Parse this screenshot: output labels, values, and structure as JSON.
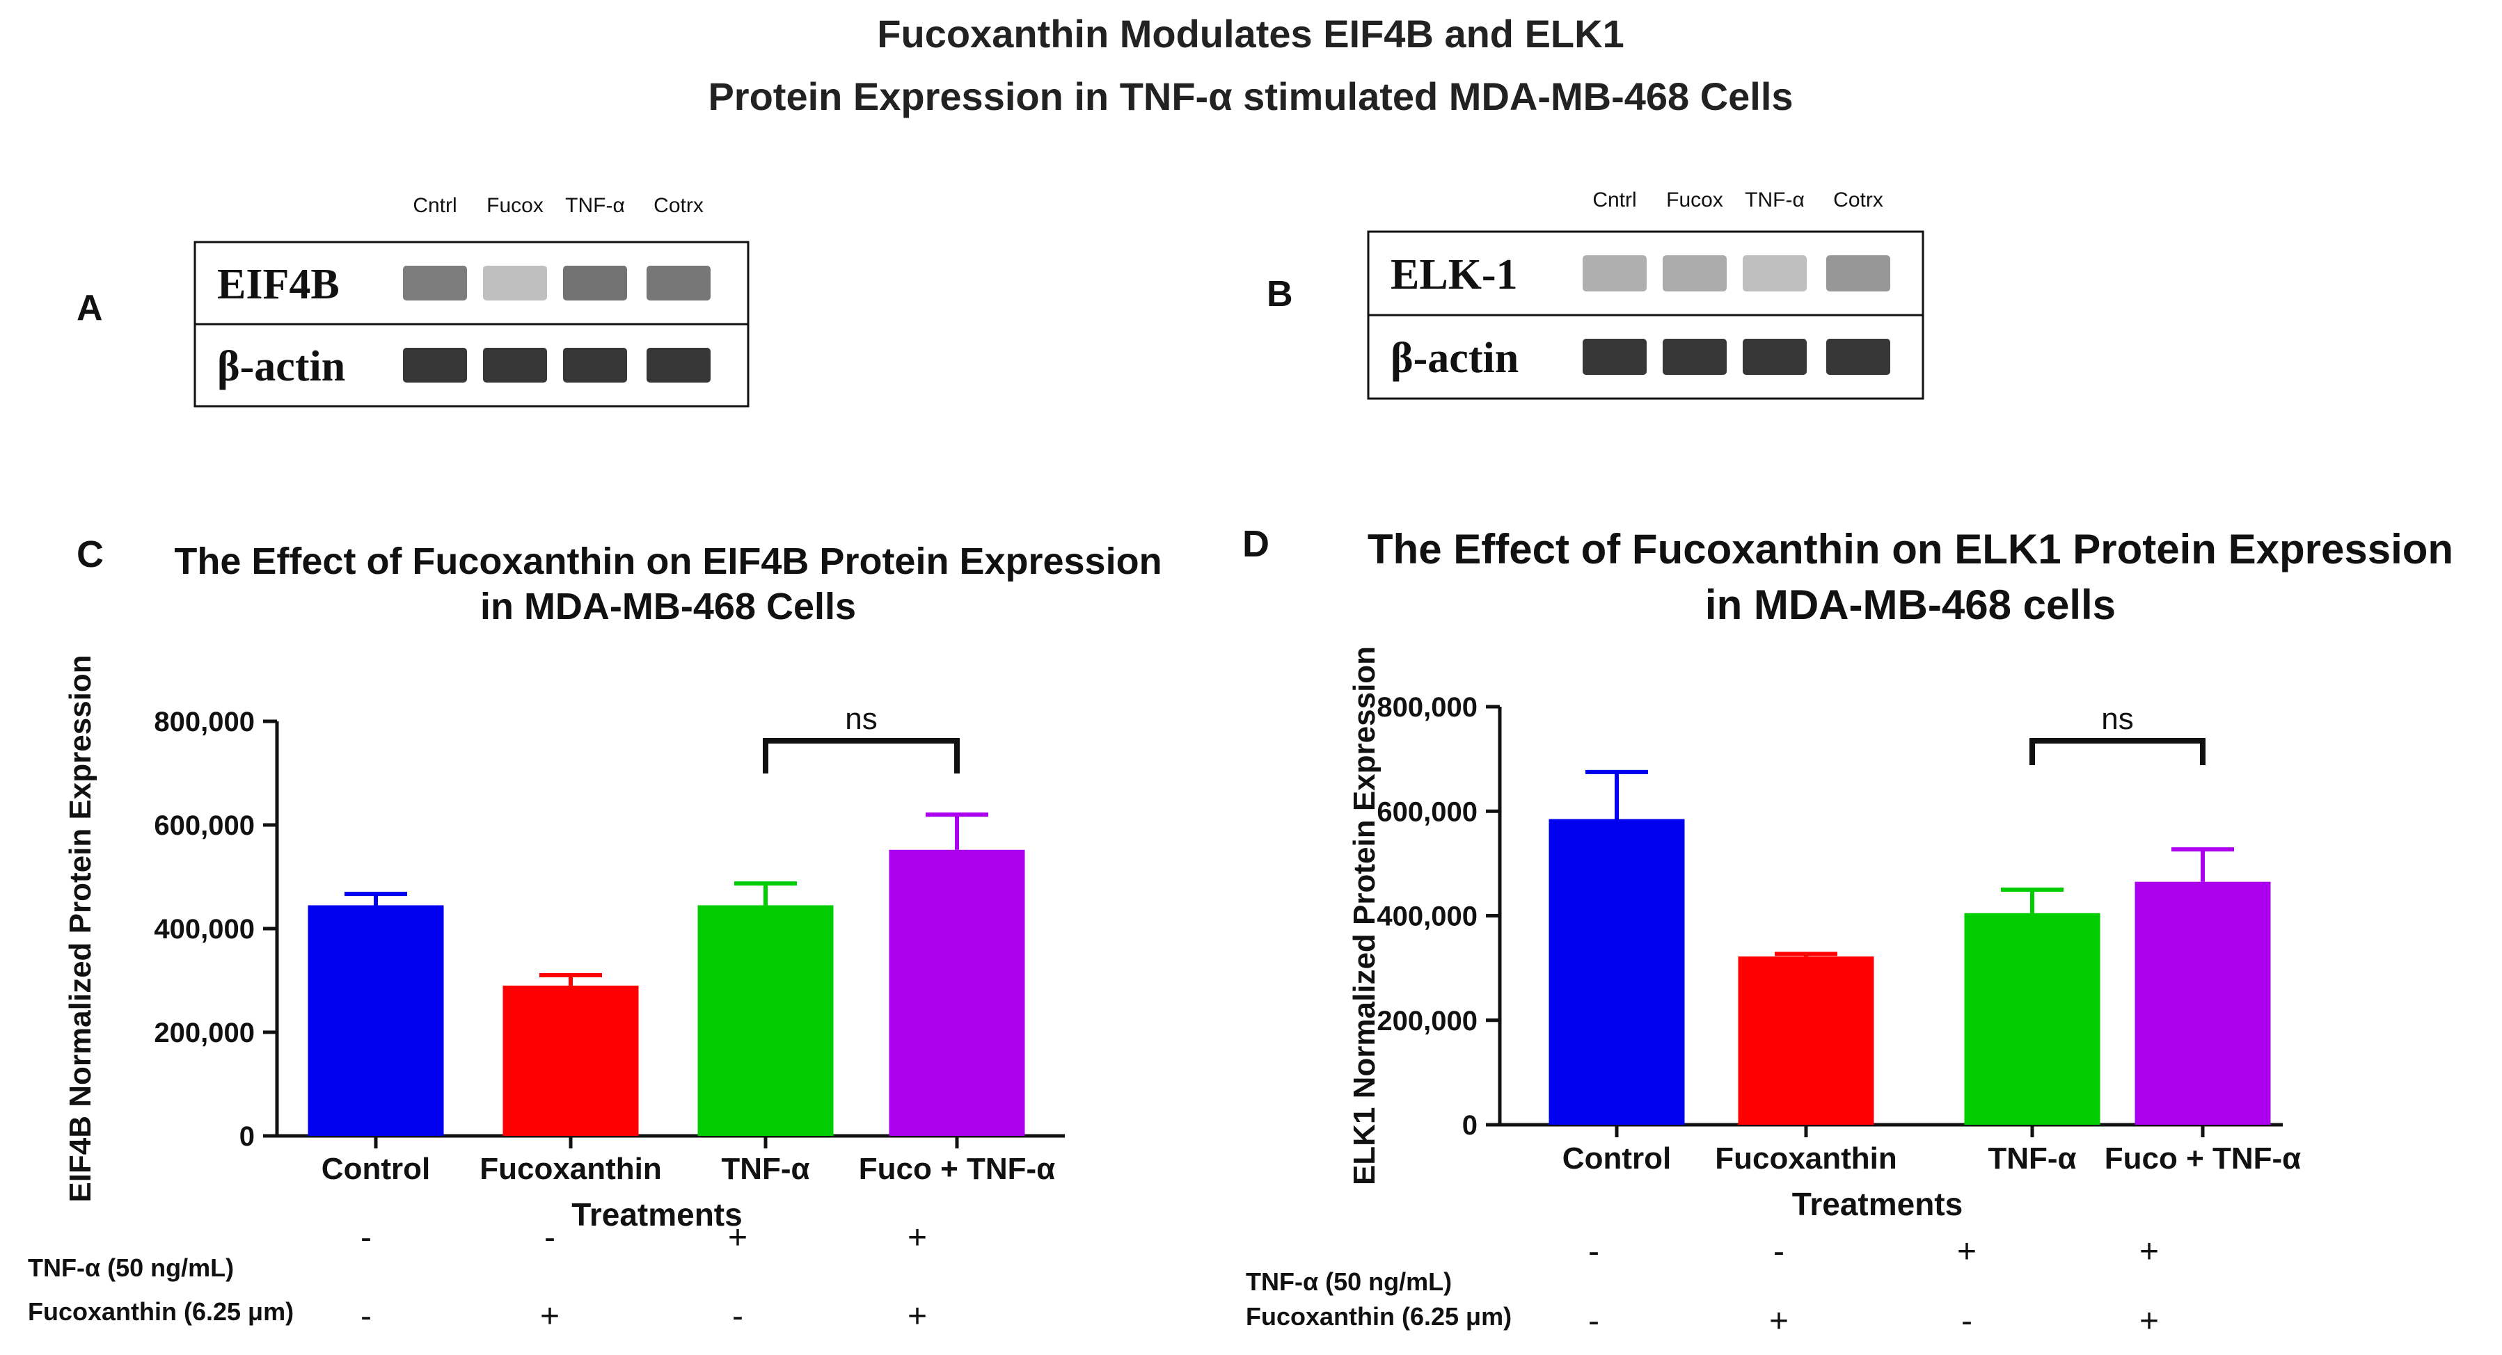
{
  "title": {
    "line1": "Fucoxanthin Modulates EIF4B and ELK1",
    "line2": "Protein Expression in TNF-α stimulated MDA-MB-468 Cells"
  },
  "blots": [
    {
      "panel": "A",
      "lanes": [
        "Cntrl",
        "Fucox",
        "TNF-α",
        "Cotrx"
      ],
      "rows": [
        {
          "label": "EIF4B",
          "band_intensity": [
            0.55,
            0.22,
            0.6,
            0.58
          ]
        },
        {
          "label": "β-actin",
          "band_intensity": [
            0.9,
            0.9,
            0.9,
            0.9
          ]
        }
      ]
    },
    {
      "panel": "B",
      "lanes": [
        "Cntrl",
        "Fucox",
        "TNF-α",
        "Cotrx"
      ],
      "rows": [
        {
          "label": "ELK-1",
          "band_intensity": [
            0.3,
            0.32,
            0.22,
            0.42
          ]
        },
        {
          "label": "β-actin",
          "band_intensity": [
            0.9,
            0.9,
            0.9,
            0.9
          ]
        }
      ]
    }
  ],
  "chart_data": [
    {
      "panel": "C",
      "type": "bar",
      "title": "The Effect of Fucoxanthin on EIF4B Protein Expression",
      "title_line2": "in MDA-MB-468 Cells",
      "xlabel": "Treatments",
      "ylabel": "EIF4B Normalized Protein Expression",
      "categories": [
        "Control",
        "Fucoxanthin",
        "TNF-α",
        "Fuco + TNF-α"
      ],
      "values": [
        445000,
        290000,
        445000,
        552000
      ],
      "errors": [
        22000,
        20000,
        42000,
        68000
      ],
      "colors": [
        "#0000ee",
        "#ff0000",
        "#00cc00",
        "#aa00ee"
      ],
      "ylim": [
        0,
        800000
      ],
      "yticks": [
        "0",
        "200,000",
        "400,000",
        "600,000",
        "800,000"
      ],
      "significance": {
        "from": 2,
        "to": 3,
        "label": "ns"
      },
      "treatment_rows": [
        {
          "label": "TNF-α (50 ng/mL)",
          "marks": [
            "-",
            "-",
            "+",
            "+"
          ]
        },
        {
          "label": "Fucoxanthin (6.25 μm)",
          "marks": [
            "-",
            "+",
            "-",
            "+"
          ]
        }
      ]
    },
    {
      "panel": "D",
      "type": "bar",
      "title": "The Effect of Fucoxanthin on ELK1 Protein Expression",
      "title_line2": "in MDA-MB-468 cells",
      "xlabel": "Treatments",
      "ylabel": "ELK1 Normalized Protein Expression",
      "categories": [
        "Control",
        "Fucoxanthin",
        "TNF-α",
        "Fuco + TNF-α"
      ],
      "values": [
        585000,
        322000,
        405000,
        465000
      ],
      "errors": [
        90000,
        5000,
        45000,
        62000
      ],
      "colors": [
        "#0000ee",
        "#ff0000",
        "#00cc00",
        "#aa00ee"
      ],
      "ylim": [
        0,
        800000
      ],
      "yticks": [
        "0",
        "200,000",
        "400,000",
        "600,000",
        "800,000"
      ],
      "significance": {
        "from": 2,
        "to": 3,
        "label": "ns"
      },
      "treatment_rows": [
        {
          "label": "TNF-α (50 ng/mL)",
          "marks": [
            "-",
            "-",
            "+",
            "+"
          ]
        },
        {
          "label": "Fucoxanthin (6.25 μm)",
          "marks": [
            "-",
            "+",
            "-",
            "+"
          ]
        }
      ]
    }
  ]
}
